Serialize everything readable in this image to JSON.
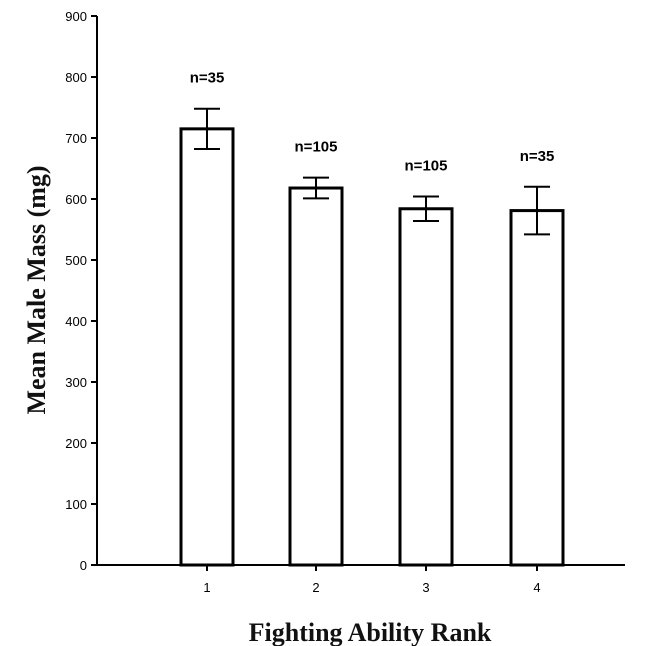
{
  "chart_data": {
    "type": "bar",
    "xlabel": "Fighting Ability Rank",
    "ylabel": "Mean Male Mass (mg)",
    "categories": [
      "1",
      "2",
      "3",
      "4"
    ],
    "values": [
      715,
      618,
      584,
      581
    ],
    "errors": [
      33,
      17,
      20,
      39
    ],
    "annotations": [
      "n=35",
      "n=105",
      "n=105",
      "n=35"
    ],
    "ylim": [
      0,
      900
    ],
    "yticks": [
      0,
      100,
      200,
      300,
      400,
      500,
      600,
      700,
      800,
      900
    ],
    "grid": false,
    "legend": "none",
    "colors": {
      "bar_fill": "#ffffff",
      "bar_stroke": "#000000",
      "axis": "#000000"
    }
  }
}
